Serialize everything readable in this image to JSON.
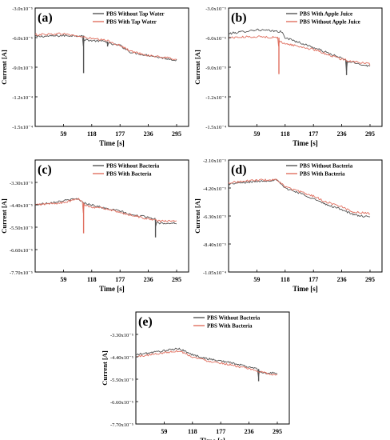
{
  "chart_data": [
    {
      "type": "line",
      "panel_label": "(a)",
      "xlabel": "Time [s]",
      "ylabel": "Current [A]",
      "xlim": [
        0,
        320
      ],
      "ylim": [
        -0.00015,
        -3e-05
      ],
      "xticks": [
        59,
        118,
        177,
        236,
        295
      ],
      "yticks": [
        -3e-05,
        -6e-05,
        -9e-05,
        -0.00012,
        -0.00015
      ],
      "ytick_labels": [
        "-3.0x10⁻⁵",
        "-6.0x10⁻⁵",
        "-9.0x10⁻⁵",
        "-1.2x10⁻⁴",
        "-1.5x10⁻⁴"
      ],
      "legend_position": "top-right",
      "series": [
        {
          "name": "PBS Without Tap Water",
          "color": "#555555",
          "x": [
            0,
            59,
            100,
            101,
            102,
            118,
            150,
            151,
            152,
            177,
            200,
            236,
            295
          ],
          "y": [
            -5.9e-05,
            -5.8e-05,
            -5.8e-05,
            -9.6e-05,
            -6.2e-05,
            -6.3e-05,
            -6.4e-05,
            -6.9e-05,
            -6.6e-05,
            -6.8e-05,
            -7.5e-05,
            -7.8e-05,
            -8.3e-05
          ]
        },
        {
          "name": "PBS With Tap Water",
          "color": "#e07060",
          "x": [
            0,
            59,
            118,
            150,
            177,
            200,
            236,
            295
          ],
          "y": [
            -5.7e-05,
            -5.6e-05,
            -6.1e-05,
            -6.3e-05,
            -6.8e-05,
            -7.4e-05,
            -7.8e-05,
            -8.2e-05
          ]
        }
      ]
    },
    {
      "type": "line",
      "panel_label": "(b)",
      "xlabel": "Time [s]",
      "ylabel": "Current [A]",
      "xlim": [
        0,
        320
      ],
      "ylim": [
        -0.00015,
        -3e-05
      ],
      "xticks": [
        59,
        118,
        177,
        236,
        295
      ],
      "yticks": [
        -3e-05,
        -6e-05,
        -9e-05,
        -0.00012,
        -0.00015
      ],
      "ytick_labels": [
        "-3.0x10⁻⁵",
        "-6.0x10⁻⁵",
        "-9.0x10⁻⁵",
        "-1.2x10⁻⁴",
        "-1.5x10⁻⁴"
      ],
      "legend_position": "top-right",
      "series": [
        {
          "name": "PBS With Apple Juice",
          "color": "#555555",
          "x": [
            0,
            59,
            110,
            118,
            177,
            236,
            245,
            246,
            247,
            295
          ],
          "y": [
            -5.6e-05,
            -5.2e-05,
            -5.4e-05,
            -6e-05,
            -7e-05,
            -8.1e-05,
            -8.3e-05,
            -9.8e-05,
            -8.4e-05,
            -8.9e-05
          ]
        },
        {
          "name": "PBS Without Apple Juice",
          "color": "#e07060",
          "x": [
            0,
            59,
            104,
            105,
            106,
            118,
            177,
            236,
            295
          ],
          "y": [
            -6e-05,
            -5.9e-05,
            -6e-05,
            -9.7e-05,
            -6.4e-05,
            -6.6e-05,
            -7.2e-05,
            -8.2e-05,
            -8.7e-05
          ]
        }
      ]
    },
    {
      "type": "line",
      "panel_label": "(c)",
      "xlabel": "Time [s]",
      "ylabel": "Current [A]",
      "xlim": [
        0,
        320
      ],
      "ylim": [
        -7.7e-05,
        -2.2e-05
      ],
      "xticks": [
        59,
        118,
        177,
        236,
        295
      ],
      "yticks": [
        -3.3e-05,
        -4.4e-05,
        -5.5e-05,
        -6.6e-05,
        -7.7e-05
      ],
      "ytick_labels": [
        "-3.30x10⁻⁵",
        "-4.40x10⁻⁵",
        "-5.50x10⁻⁵",
        "-6.60x10⁻⁵",
        "-7.70x10⁻⁵"
      ],
      "legend_position": "top-right",
      "series": [
        {
          "name": "PBS Without Bacteria",
          "color": "#555555",
          "x": [
            0,
            59,
            90,
            100,
            118,
            150,
            177,
            200,
            236,
            250,
            251,
            252,
            260,
            295
          ],
          "y": [
            -4.4e-05,
            -4.2e-05,
            -4.1e-05,
            -4.3e-05,
            -4.4e-05,
            -4.6e-05,
            -4.7e-05,
            -4.9e-05,
            -5e-05,
            -5.1e-05,
            -6e-05,
            -5.2e-05,
            -5.3e-05,
            -5.3e-05
          ]
        },
        {
          "name": "PBS With Bacteria",
          "color": "#e07060",
          "x": [
            0,
            59,
            90,
            100,
            101,
            102,
            118,
            150,
            177,
            200,
            236,
            260,
            295
          ],
          "y": [
            -4.4e-05,
            -4.3e-05,
            -4.1e-05,
            -4.3e-05,
            -5.8e-05,
            -4.4e-05,
            -4.5e-05,
            -4.6e-05,
            -4.8e-05,
            -4.9e-05,
            -5.1e-05,
            -5.2e-05,
            -5.2e-05
          ]
        }
      ]
    },
    {
      "type": "line",
      "panel_label": "(d)",
      "xlabel": "Time [s]",
      "ylabel": "Current [A]",
      "xlim": [
        0,
        320
      ],
      "ylim": [
        -0.000105,
        -2.1e-05
      ],
      "xticks": [
        59,
        118,
        177,
        236,
        295
      ],
      "yticks": [
        -2.1e-05,
        -4.2e-05,
        -6.3e-05,
        -8.4e-05,
        -0.000105
      ],
      "ytick_labels": [
        "-2.10x10⁻⁵",
        "-4.20x10⁻⁵",
        "-6.30x10⁻⁵",
        "-8.40x10⁻⁵",
        "-1.05x10⁻⁴"
      ],
      "legend_position": "top-right",
      "series": [
        {
          "name": "PBS Without Bacteria",
          "color": "#555555",
          "x": [
            0,
            59,
            100,
            118,
            150,
            177,
            200,
            236,
            260,
            295
          ],
          "y": [
            -3.9e-05,
            -3.7e-05,
            -3.6e-05,
            -4.2e-05,
            -4.6e-05,
            -5e-05,
            -5.4e-05,
            -5.8e-05,
            -6.2e-05,
            -6.4e-05
          ]
        },
        {
          "name": "PBS With Bacteria",
          "color": "#e07060",
          "x": [
            0,
            59,
            100,
            118,
            150,
            177,
            200,
            236,
            260,
            295
          ],
          "y": [
            -3.8e-05,
            -3.6e-05,
            -3.6e-05,
            -4.1e-05,
            -4.5e-05,
            -4.8e-05,
            -5.2e-05,
            -5.6e-05,
            -6e-05,
            -6.1e-05
          ]
        }
      ]
    },
    {
      "type": "line",
      "panel_label": "(e)",
      "xlabel": "Time [s]",
      "ylabel": "Current [A]",
      "xlim": [
        0,
        320
      ],
      "ylim": [
        -7.7e-05,
        -2.2e-05
      ],
      "xticks": [
        59,
        118,
        177,
        236,
        295
      ],
      "yticks": [
        -3.3e-05,
        -4.4e-05,
        -5.5e-05,
        -6.6e-05,
        -7.7e-05
      ],
      "ytick_labels": [
        "-3.30x10⁻⁵",
        "-4.40x10⁻⁵",
        "-5.50x10⁻⁵",
        "-6.60x10⁻⁵",
        "-7.70x10⁻⁵"
      ],
      "legend_position": "top-right",
      "series": [
        {
          "name": "PBS Without Bacteria",
          "color": "#555555",
          "x": [
            0,
            59,
            90,
            100,
            118,
            150,
            177,
            200,
            236,
            255,
            256,
            257,
            270,
            295
          ],
          "y": [
            -4.3e-05,
            -4.1e-05,
            -4e-05,
            -4.1e-05,
            -4.3e-05,
            -4.5e-05,
            -4.6e-05,
            -4.7e-05,
            -4.9e-05,
            -5e-05,
            -5.6e-05,
            -5.1e-05,
            -5.2e-05,
            -5.2e-05
          ]
        },
        {
          "name": "PBS With Bacteria",
          "color": "#e07060",
          "x": [
            0,
            59,
            90,
            100,
            118,
            150,
            177,
            200,
            236,
            270,
            295
          ],
          "y": [
            -4.4e-05,
            -4.2e-05,
            -4.1e-05,
            -4.2e-05,
            -4.4e-05,
            -4.6e-05,
            -4.7e-05,
            -4.8e-05,
            -5e-05,
            -5.2e-05,
            -5.3e-05
          ]
        }
      ]
    }
  ]
}
